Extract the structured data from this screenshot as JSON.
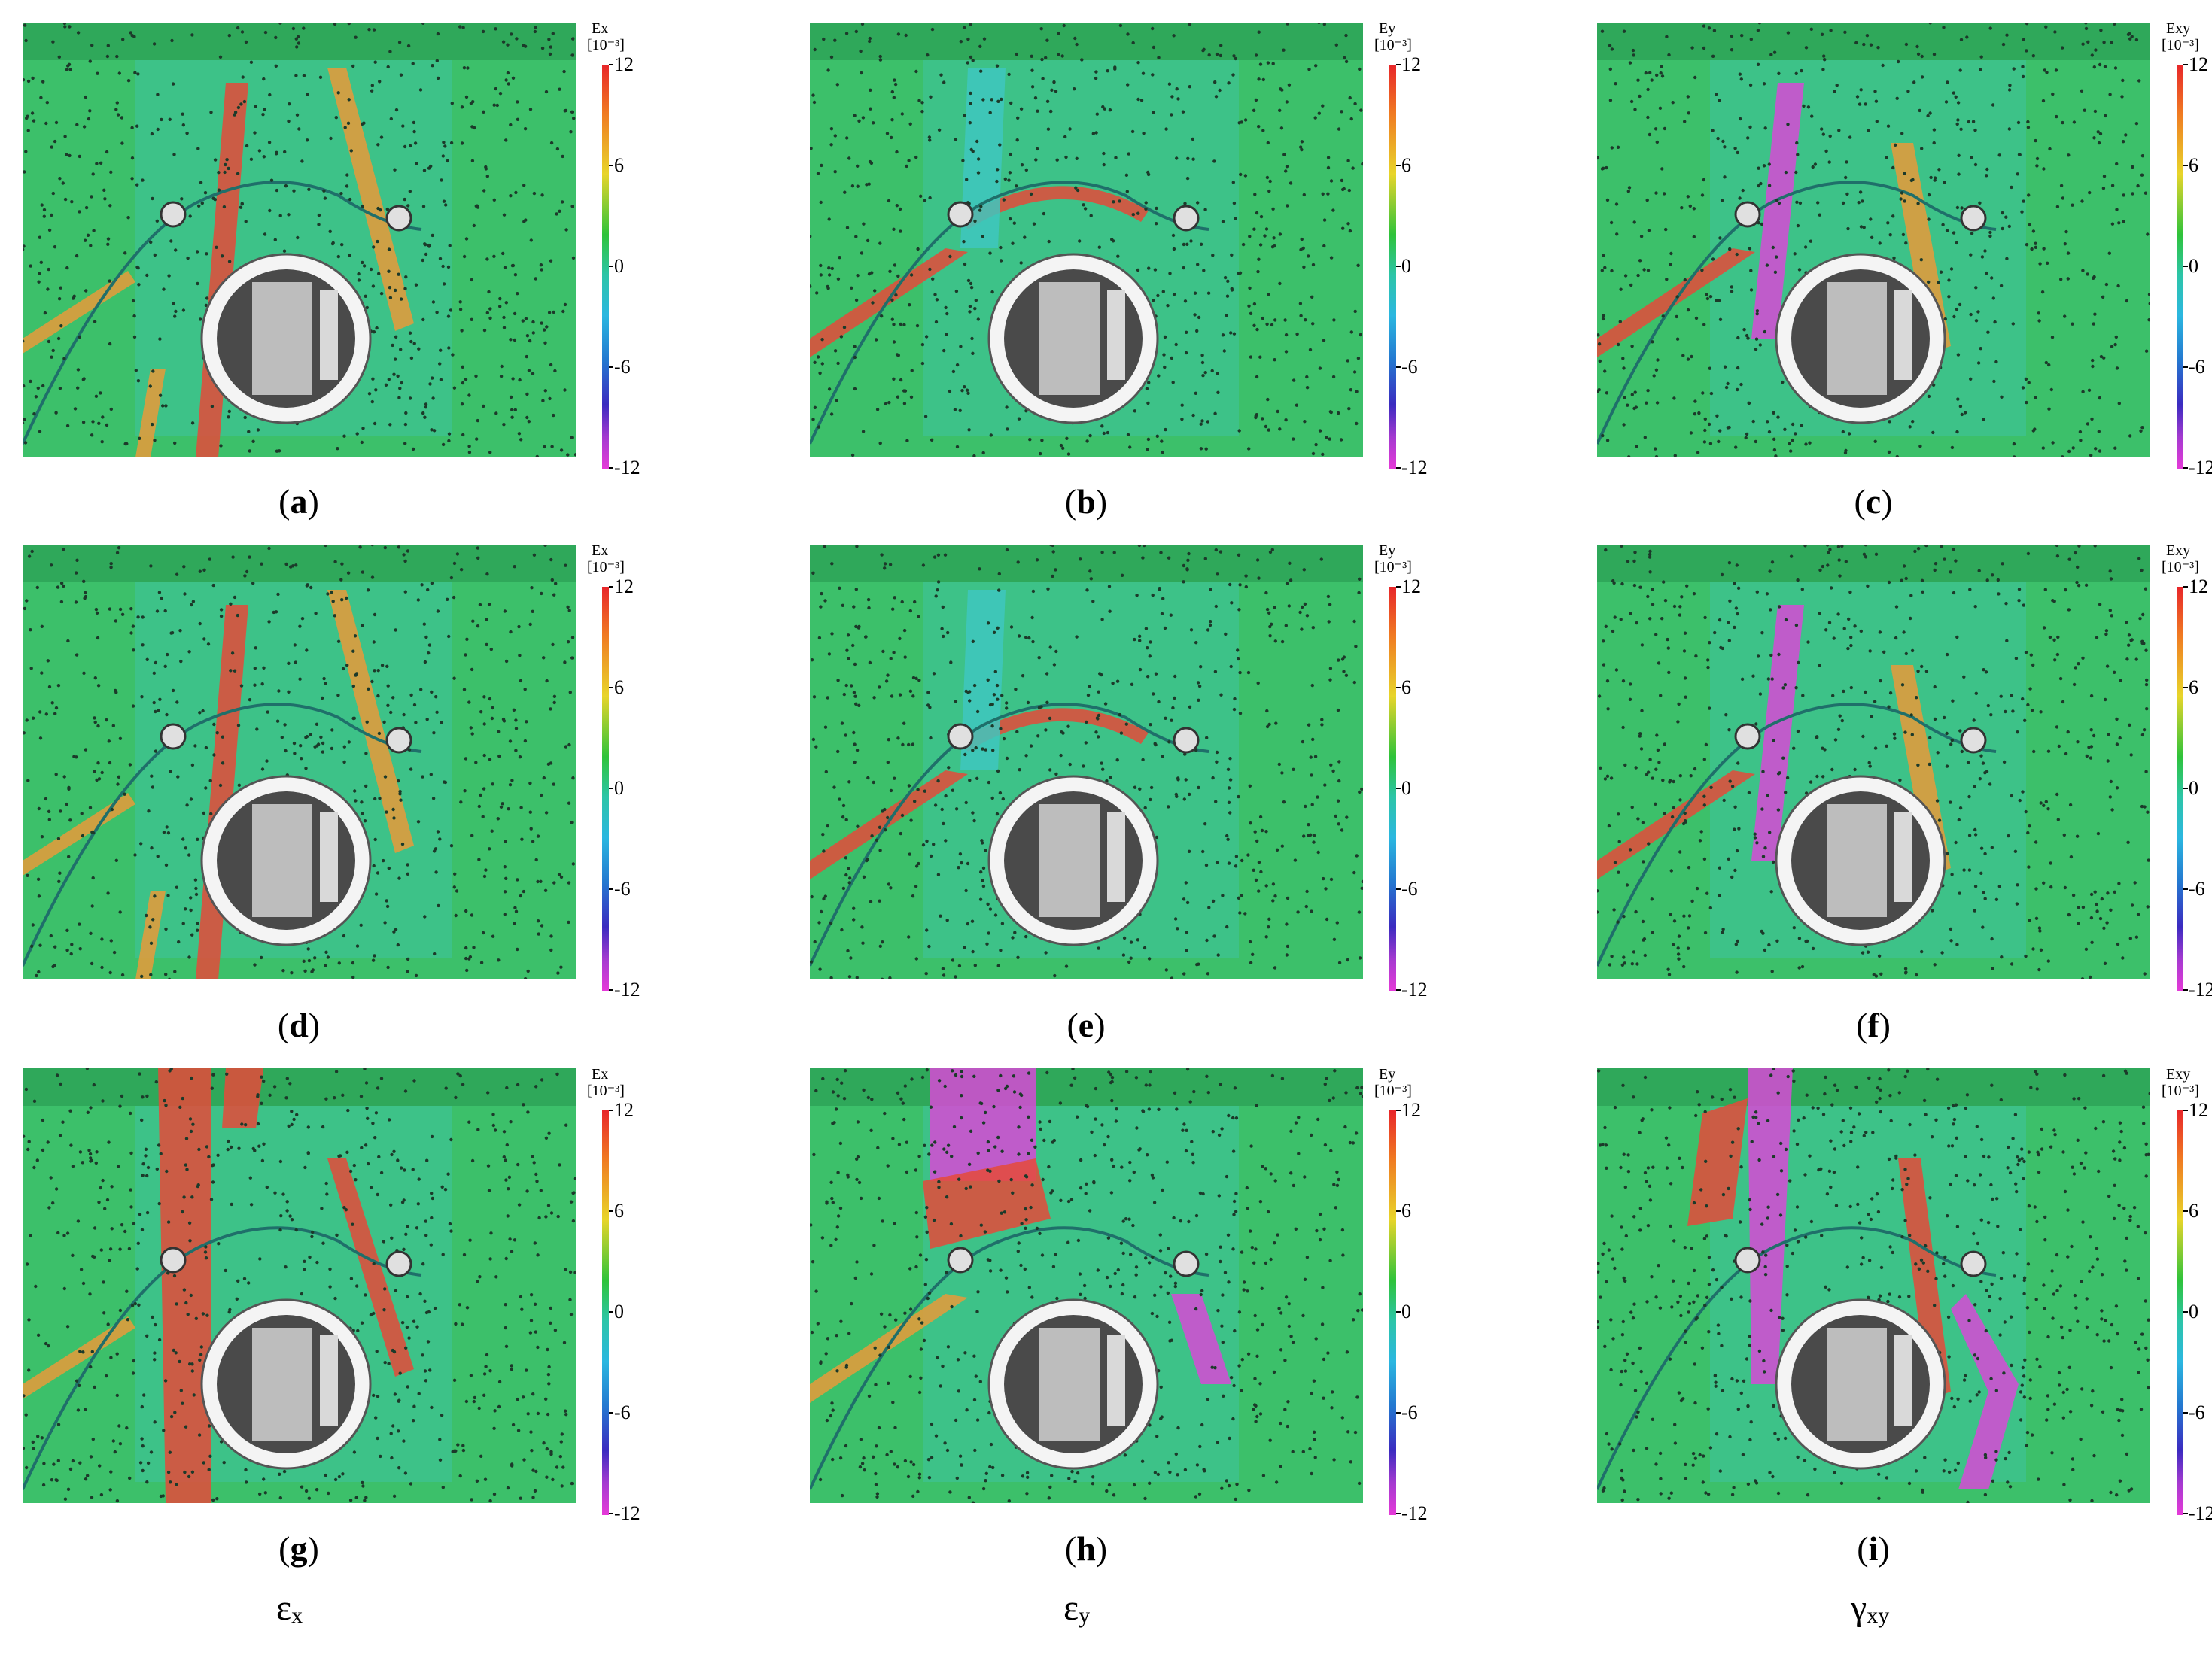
{
  "panels": [
    {
      "id": "a",
      "label": "a",
      "scale_name": "Ex",
      "unit": "[10⁻³]"
    },
    {
      "id": "b",
      "label": "b",
      "scale_name": "Ey",
      "unit": "[10⁻³]"
    },
    {
      "id": "c",
      "label": "c",
      "scale_name": "Exy",
      "unit": "[10⁻³]"
    },
    {
      "id": "d",
      "label": "d",
      "scale_name": "Ex",
      "unit": "[10⁻³]"
    },
    {
      "id": "e",
      "label": "e",
      "scale_name": "Ey",
      "unit": "[10⁻³]"
    },
    {
      "id": "f",
      "label": "f",
      "scale_name": "Exy",
      "unit": "[10⁻³]"
    },
    {
      "id": "g",
      "label": "g",
      "scale_name": "Ex",
      "unit": "[10⁻³]"
    },
    {
      "id": "h",
      "label": "h",
      "scale_name": "Ey",
      "unit": "[10⁻³]"
    },
    {
      "id": "i",
      "label": "i",
      "scale_name": "Exy",
      "unit": "[10⁻³]"
    }
  ],
  "scale_ticks": [
    "12",
    "6",
    "0",
    "-6",
    "-12"
  ],
  "column_labels": [
    {
      "symbol": "ε",
      "sub": "x"
    },
    {
      "symbol": "ε",
      "sub": "y"
    },
    {
      "symbol": "γ",
      "sub": "xy"
    }
  ],
  "colors": {
    "field_green": "#3cc06a",
    "band_red": "#e44a3a",
    "band_orange": "#e89a3a",
    "band_magenta": "#d64ad6",
    "band_cyan": "#3ec7c0"
  }
}
